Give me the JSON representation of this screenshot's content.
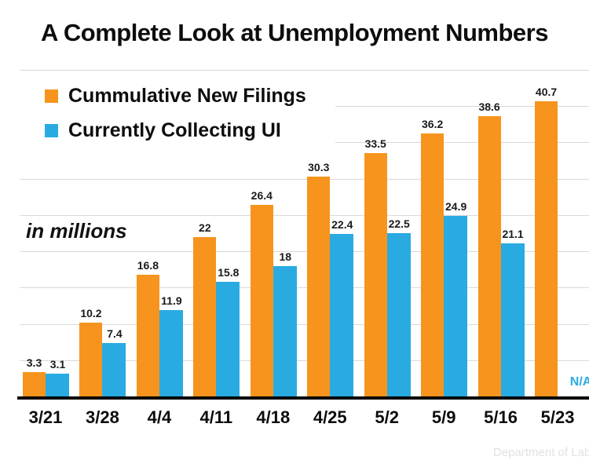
{
  "title": "A Complete Look at Unemployment Numbers",
  "annotation": "in millions",
  "watermark": "Department of Labo",
  "legend": [
    {
      "label": "Cummulative New Filings",
      "color": "#F7941D"
    },
    {
      "label": "Currently Collecting UI",
      "color": "#29ABE2"
    }
  ],
  "chart_data": {
    "type": "bar",
    "title": "A Complete Look at Unemployment Numbers",
    "unit": "millions",
    "categories": [
      "3/21",
      "3/28",
      "4/4",
      "4/11",
      "4/18",
      "4/25",
      "5/2",
      "5/9",
      "5/16",
      "5/23"
    ],
    "series": [
      {
        "name": "Cummulative New Filings",
        "color": "#F7941D",
        "values": [
          3.3,
          10.2,
          16.8,
          22,
          26.4,
          30.3,
          33.5,
          36.2,
          38.6,
          40.7
        ],
        "labels": [
          "3.3",
          "10.2",
          "16.8",
          "22",
          "26.4",
          "30.3",
          "33.5",
          "36.2",
          "38.6",
          "40.7"
        ]
      },
      {
        "name": "Currently Collecting UI",
        "color": "#29ABE2",
        "values": [
          3.1,
          7.4,
          11.9,
          15.8,
          18,
          22.4,
          22.5,
          24.9,
          21.1,
          null
        ],
        "labels": [
          "3.1",
          "7.4",
          "11.9",
          "15.8",
          "18",
          "22.4",
          "22.5",
          "24.9",
          "21.1",
          "N/A"
        ]
      }
    ],
    "na_label": "N/A",
    "ylim": [
      0,
      45
    ],
    "gridline_interval": 5,
    "grid": true,
    "legend_position": "top-left",
    "gridline_color": "#d9d9d9"
  }
}
